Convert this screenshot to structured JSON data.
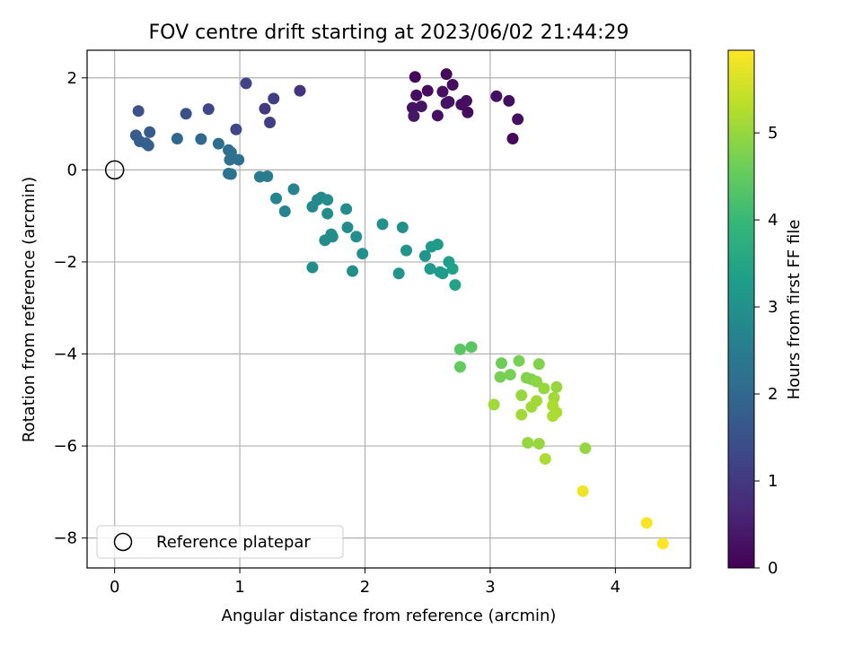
{
  "chart_data": {
    "type": "scatter",
    "title": "FOV centre drift starting at 2023/06/02 21:44:29",
    "xlabel": "Angular distance from reference (arcmin)",
    "ylabel": "Rotation from reference (arcmin)",
    "xlim": [
      -0.22,
      4.6
    ],
    "ylim": [
      -8.65,
      2.6
    ],
    "x_ticks": [
      0,
      1,
      2,
      3,
      4
    ],
    "x_tick_labels": [
      "0",
      "1",
      "2",
      "3",
      "4"
    ],
    "y_ticks": [
      2,
      0,
      -2,
      -4,
      -6,
      -8
    ],
    "y_tick_labels": [
      "2",
      "0",
      "−2",
      "−4",
      "−6",
      "−8"
    ],
    "grid": true,
    "legend": {
      "placement": "lower-left",
      "entries": [
        "Reference platepar"
      ]
    },
    "reference_point": {
      "x": 0,
      "y": 0
    },
    "colorbar": {
      "label": "Hours from first FF file",
      "range": [
        0,
        5.95
      ],
      "ticks": [
        0,
        1,
        2,
        3,
        4,
        5
      ],
      "tick_labels": [
        "0",
        "1",
        "2",
        "3",
        "4",
        "5"
      ],
      "colormap": "viridis",
      "colormap_stops": [
        "#440154",
        "#482878",
        "#3e4989",
        "#31688e",
        "#26828e",
        "#1f9e89",
        "#35b779",
        "#6ece58",
        "#b5de2b",
        "#fde725"
      ]
    },
    "points": [
      {
        "x": 2.4,
        "y": 2.02,
        "c": 0.1
      },
      {
        "x": 2.65,
        "y": 2.08,
        "c": 0.15
      },
      {
        "x": 2.41,
        "y": 1.62,
        "c": 0.2
      },
      {
        "x": 2.5,
        "y": 1.72,
        "c": 0.18
      },
      {
        "x": 2.62,
        "y": 1.7,
        "c": 0.25
      },
      {
        "x": 2.7,
        "y": 1.85,
        "c": 0.2
      },
      {
        "x": 2.38,
        "y": 1.35,
        "c": 0.3
      },
      {
        "x": 2.45,
        "y": 1.38,
        "c": 0.28
      },
      {
        "x": 2.65,
        "y": 1.45,
        "c": 0.32
      },
      {
        "x": 2.67,
        "y": 1.48,
        "c": 0.3
      },
      {
        "x": 2.77,
        "y": 1.42,
        "c": 0.2
      },
      {
        "x": 2.81,
        "y": 1.5,
        "c": 0.22
      },
      {
        "x": 2.39,
        "y": 1.17,
        "c": 0.35
      },
      {
        "x": 2.58,
        "y": 1.18,
        "c": 0.25
      },
      {
        "x": 2.82,
        "y": 1.25,
        "c": 0.2
      },
      {
        "x": 3.05,
        "y": 1.6,
        "c": 0.25
      },
      {
        "x": 3.15,
        "y": 1.5,
        "c": 0.2
      },
      {
        "x": 3.22,
        "y": 1.1,
        "c": 0.22
      },
      {
        "x": 3.18,
        "y": 0.68,
        "c": 0.1
      },
      {
        "x": 1.48,
        "y": 1.72,
        "c": 0.9
      },
      {
        "x": 1.05,
        "y": 1.88,
        "c": 1.2
      },
      {
        "x": 1.27,
        "y": 1.55,
        "c": 1.1
      },
      {
        "x": 1.2,
        "y": 1.33,
        "c": 1.0
      },
      {
        "x": 1.24,
        "y": 1.03,
        "c": 1.1
      },
      {
        "x": 0.97,
        "y": 0.88,
        "c": 1.3
      },
      {
        "x": 0.75,
        "y": 1.32,
        "c": 1.3
      },
      {
        "x": 0.57,
        "y": 1.22,
        "c": 1.5
      },
      {
        "x": 0.19,
        "y": 1.28,
        "c": 1.5
      },
      {
        "x": 0.28,
        "y": 0.82,
        "c": 1.7
      },
      {
        "x": 0.17,
        "y": 0.75,
        "c": 1.7
      },
      {
        "x": 0.2,
        "y": 0.62,
        "c": 1.8
      },
      {
        "x": 0.25,
        "y": 0.58,
        "c": 1.8
      },
      {
        "x": 0.27,
        "y": 0.53,
        "c": 1.8
      },
      {
        "x": 0.5,
        "y": 0.68,
        "c": 2.0
      },
      {
        "x": 0.69,
        "y": 0.67,
        "c": 2.0
      },
      {
        "x": 0.83,
        "y": 0.57,
        "c": 2.1
      },
      {
        "x": 0.91,
        "y": 0.43,
        "c": 2.1
      },
      {
        "x": 0.93,
        "y": 0.38,
        "c": 2.15
      },
      {
        "x": 0.92,
        "y": 0.22,
        "c": 2.2
      },
      {
        "x": 0.99,
        "y": 0.22,
        "c": 2.2
      },
      {
        "x": 0.91,
        "y": -0.08,
        "c": 2.25
      },
      {
        "x": 0.93,
        "y": -0.09,
        "c": 2.3
      },
      {
        "x": 1.16,
        "y": -0.15,
        "c": 2.5
      },
      {
        "x": 1.22,
        "y": -0.14,
        "c": 2.5
      },
      {
        "x": 1.43,
        "y": -0.42,
        "c": 2.7
      },
      {
        "x": 1.29,
        "y": -0.62,
        "c": 2.7
      },
      {
        "x": 1.36,
        "y": -0.9,
        "c": 2.7
      },
      {
        "x": 1.58,
        "y": -0.8,
        "c": 2.8
      },
      {
        "x": 1.62,
        "y": -0.65,
        "c": 2.8
      },
      {
        "x": 1.65,
        "y": -0.6,
        "c": 2.8
      },
      {
        "x": 1.7,
        "y": -0.65,
        "c": 2.9
      },
      {
        "x": 1.7,
        "y": -0.95,
        "c": 2.9
      },
      {
        "x": 1.85,
        "y": -0.85,
        "c": 2.9
      },
      {
        "x": 1.86,
        "y": -1.25,
        "c": 2.9
      },
      {
        "x": 1.73,
        "y": -1.4,
        "c": 2.9
      },
      {
        "x": 1.74,
        "y": -1.45,
        "c": 2.9
      },
      {
        "x": 1.68,
        "y": -1.53,
        "c": 2.9
      },
      {
        "x": 1.93,
        "y": -1.45,
        "c": 2.95
      },
      {
        "x": 1.98,
        "y": -1.82,
        "c": 3.0
      },
      {
        "x": 1.58,
        "y": -2.12,
        "c": 2.9
      },
      {
        "x": 1.9,
        "y": -2.2,
        "c": 2.95
      },
      {
        "x": 2.14,
        "y": -1.18,
        "c": 3.0
      },
      {
        "x": 2.3,
        "y": -1.25,
        "c": 3.0
      },
      {
        "x": 2.33,
        "y": -1.75,
        "c": 3.1
      },
      {
        "x": 2.27,
        "y": -2.25,
        "c": 3.1
      },
      {
        "x": 2.48,
        "y": -1.87,
        "c": 3.1
      },
      {
        "x": 2.53,
        "y": -1.67,
        "c": 3.2
      },
      {
        "x": 2.58,
        "y": -1.62,
        "c": 3.2
      },
      {
        "x": 2.52,
        "y": -2.15,
        "c": 3.2
      },
      {
        "x": 2.6,
        "y": -2.22,
        "c": 3.2
      },
      {
        "x": 2.62,
        "y": -2.25,
        "c": 3.2
      },
      {
        "x": 2.67,
        "y": -2.0,
        "c": 3.3
      },
      {
        "x": 2.7,
        "y": -2.15,
        "c": 3.4
      },
      {
        "x": 2.72,
        "y": -2.5,
        "c": 3.4
      },
      {
        "x": 2.76,
        "y": -3.9,
        "c": 4.4
      },
      {
        "x": 2.85,
        "y": -3.85,
        "c": 4.4
      },
      {
        "x": 2.76,
        "y": -4.28,
        "c": 4.5
      },
      {
        "x": 3.09,
        "y": -4.2,
        "c": 4.6
      },
      {
        "x": 3.08,
        "y": -4.5,
        "c": 4.7
      },
      {
        "x": 3.16,
        "y": -4.45,
        "c": 4.7
      },
      {
        "x": 3.23,
        "y": -4.15,
        "c": 4.7
      },
      {
        "x": 3.29,
        "y": -4.52,
        "c": 4.8
      },
      {
        "x": 3.33,
        "y": -4.55,
        "c": 4.8
      },
      {
        "x": 3.39,
        "y": -4.22,
        "c": 4.8
      },
      {
        "x": 3.37,
        "y": -4.6,
        "c": 4.9
      },
      {
        "x": 3.43,
        "y": -4.75,
        "c": 5.0
      },
      {
        "x": 3.53,
        "y": -4.72,
        "c": 5.0
      },
      {
        "x": 3.25,
        "y": -4.9,
        "c": 5.0
      },
      {
        "x": 3.25,
        "y": -5.32,
        "c": 5.1
      },
      {
        "x": 3.33,
        "y": -5.15,
        "c": 5.1
      },
      {
        "x": 3.37,
        "y": -5.02,
        "c": 5.1
      },
      {
        "x": 3.51,
        "y": -4.95,
        "c": 5.1
      },
      {
        "x": 3.5,
        "y": -5.12,
        "c": 5.2
      },
      {
        "x": 3.5,
        "y": -5.35,
        "c": 5.2
      },
      {
        "x": 3.53,
        "y": -5.27,
        "c": 5.2
      },
      {
        "x": 3.03,
        "y": -5.1,
        "c": 5.1
      },
      {
        "x": 3.3,
        "y": -5.93,
        "c": 5.0
      },
      {
        "x": 3.39,
        "y": -5.95,
        "c": 5.0
      },
      {
        "x": 3.44,
        "y": -6.28,
        "c": 5.2
      },
      {
        "x": 3.76,
        "y": -6.05,
        "c": 5.0
      },
      {
        "x": 3.74,
        "y": -6.98,
        "c": 5.8
      },
      {
        "x": 4.25,
        "y": -7.67,
        "c": 5.9
      },
      {
        "x": 4.38,
        "y": -8.12,
        "c": 5.95
      }
    ]
  }
}
